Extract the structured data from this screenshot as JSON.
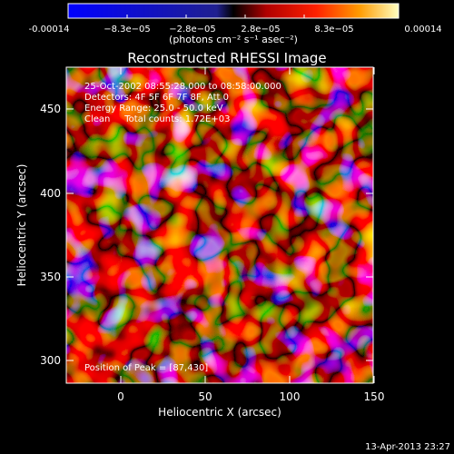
{
  "colorbar": {
    "tick_labels": [
      "-0.00014",
      "−8.3e−05",
      "−2.8e−05",
      "2.8e−05",
      "8.3e−05",
      "0.00014"
    ],
    "units": "(photons cm⁻² s⁻¹ asec⁻²)"
  },
  "image": {
    "title": "Reconstructed RHESSI Image",
    "xlabel": "Heliocentric X (arcsec)",
    "ylabel": "Heliocentric Y (arcsec)",
    "x_ticks": [
      "0",
      "50",
      "100",
      "150"
    ],
    "y_ticks": [
      "450",
      "400",
      "350",
      "300"
    ],
    "info_lines": [
      "25-Oct-2002 08:55:28.000 to 08:58:00.000",
      "Detectors: 4F 5F 6F 7F 8F, Att 0",
      "Energy Range: 25.0 - 50.0 keV",
      "Clean     Total counts: 1.72E+03"
    ],
    "peak_label": "Position of Peak = [87,430]"
  },
  "footer": {
    "timestamp": "13-Apr-2013 23:27"
  },
  "colors": {
    "background": "#000000",
    "text": "#ffffff"
  }
}
